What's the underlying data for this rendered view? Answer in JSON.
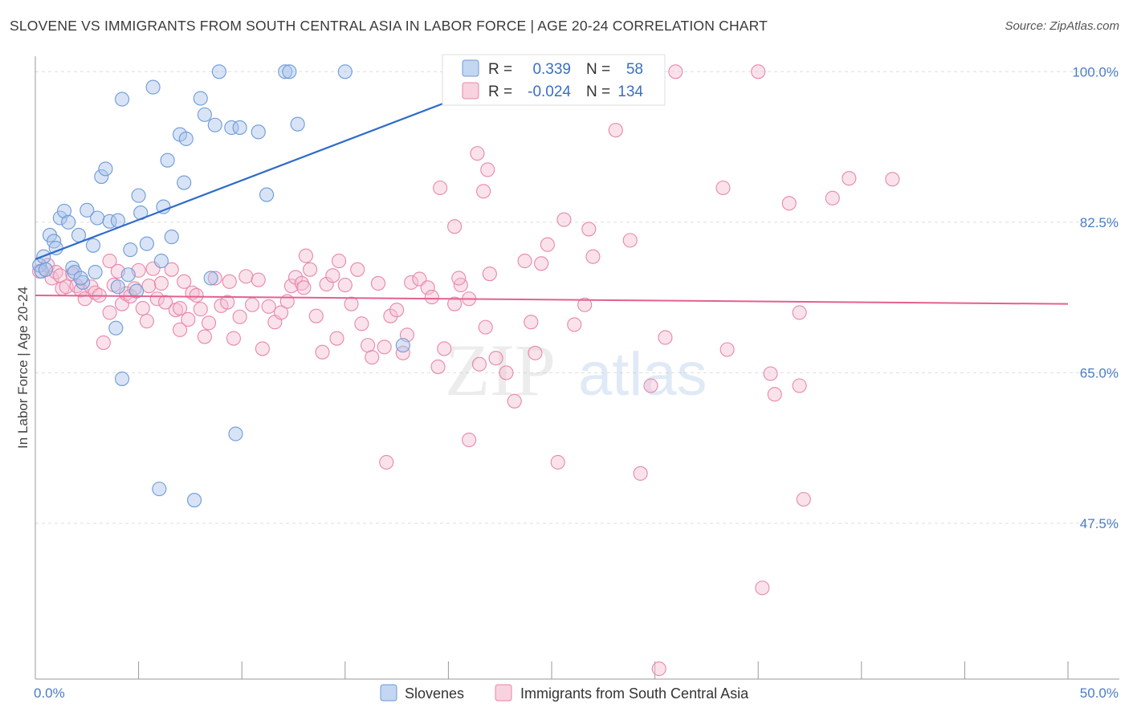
{
  "header": {
    "title": "SLOVENE VS IMMIGRANTS FROM SOUTH CENTRAL ASIA IN LABOR FORCE | AGE 20-24 CORRELATION CHART",
    "source": "Source: ZipAtlas.com"
  },
  "watermark": {
    "zip": "ZIP",
    "atlas": "atlas"
  },
  "colors": {
    "blue_fill": "#a9c4ec",
    "blue_stroke": "#6d9ad8",
    "blue_line": "#2f6bc9",
    "pink_fill": "#f5bfd2",
    "pink_stroke": "#e887a9",
    "pink_line": "#e4608f",
    "tick_label": "#4a7cc7",
    "grid": "#dddddd"
  },
  "legend": {
    "rows": [
      {
        "r_label": "R =",
        "r_value": "0.339",
        "n_label": "N =",
        "n_value": "58"
      },
      {
        "r_label": "R =",
        "r_value": "-0.024",
        "n_label": "N =",
        "n_value": "134"
      }
    ]
  },
  "chart_data": {
    "type": "scatter",
    "title": "SLOVENE VS IMMIGRANTS FROM SOUTH CENTRAL ASIA IN LABOR FORCE | AGE 20-24 CORRELATION CHART",
    "xlabel": "",
    "ylabel": "In Labor Force | Age 20-24",
    "xlim": [
      0,
      50
    ],
    "ylim": [
      29.4,
      101.8
    ],
    "x_tick_labels": [
      {
        "value": 0,
        "label": "0.0%"
      },
      {
        "value": 50,
        "label": "50.0%"
      }
    ],
    "y_tick_labels": [
      {
        "value": 100,
        "label": "100.0%"
      },
      {
        "value": 82.5,
        "label": "82.5%"
      },
      {
        "value": 65,
        "label": "65.0%"
      },
      {
        "value": 47.5,
        "label": "47.5%"
      }
    ],
    "grid": true,
    "legend_position": "top-center",
    "series": [
      {
        "name": "Slovenes",
        "r": 0.339,
        "n": 58,
        "trend": {
          "x": [
            0,
            24
          ],
          "y": [
            78.2,
            100.2
          ]
        },
        "points": [
          [
            0.2,
            77.5
          ],
          [
            0.3,
            76.8
          ],
          [
            0.4,
            78.5
          ],
          [
            0.5,
            77.0
          ],
          [
            0.7,
            81.0
          ],
          [
            0.9,
            80.3
          ],
          [
            1.0,
            79.5
          ],
          [
            1.2,
            83.0
          ],
          [
            1.4,
            83.8
          ],
          [
            1.6,
            82.5
          ],
          [
            1.8,
            77.2
          ],
          [
            1.9,
            76.7
          ],
          [
            2.1,
            81.0
          ],
          [
            2.3,
            75.5
          ],
          [
            2.5,
            83.9
          ],
          [
            2.8,
            79.8
          ],
          [
            3.0,
            83.0
          ],
          [
            3.2,
            87.8
          ],
          [
            3.4,
            88.7
          ],
          [
            3.6,
            82.6
          ],
          [
            4.0,
            82.7
          ],
          [
            4.2,
            96.8
          ],
          [
            4.5,
            76.4
          ],
          [
            4.6,
            79.3
          ],
          [
            4.9,
            74.5
          ],
          [
            5.0,
            85.6
          ],
          [
            5.1,
            83.6
          ],
          [
            5.4,
            80.0
          ],
          [
            5.7,
            98.2
          ],
          [
            6.1,
            78.0
          ],
          [
            6.2,
            84.3
          ],
          [
            6.4,
            89.7
          ],
          [
            6.6,
            80.8
          ],
          [
            7.0,
            92.7
          ],
          [
            7.2,
            87.1
          ],
          [
            7.3,
            92.2
          ],
          [
            8.0,
            96.9
          ],
          [
            8.2,
            95.0
          ],
          [
            8.5,
            76.0
          ],
          [
            8.7,
            93.8
          ],
          [
            8.9,
            100.0
          ],
          [
            9.5,
            93.5
          ],
          [
            9.9,
            93.5
          ],
          [
            10.8,
            93.0
          ],
          [
            11.2,
            85.7
          ],
          [
            12.1,
            100.0
          ],
          [
            12.3,
            100.0
          ],
          [
            12.7,
            93.9
          ],
          [
            15.0,
            100.0
          ],
          [
            17.8,
            68.2
          ],
          [
            3.9,
            70.2
          ],
          [
            4.2,
            64.3
          ],
          [
            6.0,
            51.5
          ],
          [
            7.7,
            50.2
          ],
          [
            9.7,
            57.9
          ],
          [
            4.0,
            75.0
          ],
          [
            2.9,
            76.7
          ],
          [
            2.2,
            76.0
          ]
        ]
      },
      {
        "name": "Immigrants from South Central Asia",
        "r": -0.024,
        "n": 134,
        "trend": {
          "x": [
            0,
            50
          ],
          "y": [
            74.0,
            73.0
          ]
        },
        "points": [
          [
            0.2,
            76.8
          ],
          [
            0.6,
            77.5
          ],
          [
            0.8,
            76.0
          ],
          [
            1.0,
            76.7
          ],
          [
            1.2,
            76.3
          ],
          [
            1.3,
            74.8
          ],
          [
            1.5,
            75.0
          ],
          [
            1.8,
            76.5
          ],
          [
            2.0,
            75.1
          ],
          [
            2.2,
            74.6
          ],
          [
            2.4,
            73.6
          ],
          [
            2.7,
            75.0
          ],
          [
            2.9,
            74.3
          ],
          [
            3.1,
            74.0
          ],
          [
            3.3,
            68.5
          ],
          [
            3.6,
            78.0
          ],
          [
            3.8,
            75.2
          ],
          [
            4.0,
            76.8
          ],
          [
            4.2,
            73.0
          ],
          [
            4.4,
            74.2
          ],
          [
            4.6,
            73.9
          ],
          [
            4.8,
            74.8
          ],
          [
            5.0,
            76.9
          ],
          [
            5.2,
            72.5
          ],
          [
            5.5,
            75.1
          ],
          [
            5.7,
            77.1
          ],
          [
            5.9,
            73.6
          ],
          [
            6.1,
            75.4
          ],
          [
            6.3,
            73.2
          ],
          [
            6.6,
            77.0
          ],
          [
            6.8,
            72.3
          ],
          [
            7.0,
            72.5
          ],
          [
            7.2,
            75.6
          ],
          [
            7.4,
            71.2
          ],
          [
            7.6,
            74.3
          ],
          [
            7.8,
            74.0
          ],
          [
            8.0,
            72.4
          ],
          [
            8.2,
            69.2
          ],
          [
            8.4,
            70.8
          ],
          [
            8.7,
            76.0
          ],
          [
            9.0,
            72.8
          ],
          [
            9.3,
            73.2
          ],
          [
            9.6,
            69.0
          ],
          [
            9.9,
            71.5
          ],
          [
            10.2,
            76.2
          ],
          [
            10.5,
            72.9
          ],
          [
            10.8,
            75.8
          ],
          [
            11.0,
            67.8
          ],
          [
            11.3,
            72.7
          ],
          [
            11.6,
            70.9
          ],
          [
            11.9,
            72.0
          ],
          [
            12.2,
            73.3
          ],
          [
            12.4,
            75.1
          ],
          [
            12.6,
            76.1
          ],
          [
            12.9,
            75.4
          ],
          [
            13.1,
            78.6
          ],
          [
            13.3,
            77.0
          ],
          [
            13.6,
            71.6
          ],
          [
            13.9,
            67.4
          ],
          [
            14.1,
            75.3
          ],
          [
            14.4,
            76.3
          ],
          [
            14.7,
            78.0
          ],
          [
            15.0,
            75.2
          ],
          [
            15.3,
            73.0
          ],
          [
            15.6,
            77.0
          ],
          [
            15.8,
            70.7
          ],
          [
            16.1,
            68.2
          ],
          [
            16.3,
            66.8
          ],
          [
            16.6,
            75.4
          ],
          [
            16.9,
            68.0
          ],
          [
            17.2,
            71.6
          ],
          [
            17.5,
            72.3
          ],
          [
            17.8,
            67.3
          ],
          [
            18.2,
            75.5
          ],
          [
            18.6,
            75.9
          ],
          [
            19.0,
            74.9
          ],
          [
            19.2,
            73.8
          ],
          [
            19.5,
            65.7
          ],
          [
            19.8,
            67.8
          ],
          [
            20.3,
            73.0
          ],
          [
            20.6,
            75.2
          ],
          [
            21.0,
            73.6
          ],
          [
            21.5,
            66.0
          ],
          [
            21.8,
            70.3
          ],
          [
            22.3,
            66.7
          ],
          [
            22.8,
            65.0
          ],
          [
            23.2,
            61.7
          ],
          [
            24.0,
            70.9
          ],
          [
            24.5,
            77.7
          ],
          [
            24.8,
            79.9
          ],
          [
            25.6,
            82.8
          ],
          [
            26.1,
            70.6
          ],
          [
            26.6,
            72.9
          ],
          [
            26.8,
            81.7
          ],
          [
            27.0,
            78.5
          ],
          [
            28.1,
            93.2
          ],
          [
            28.8,
            80.4
          ],
          [
            29.3,
            53.3
          ],
          [
            29.8,
            63.5
          ],
          [
            30.5,
            69.1
          ],
          [
            31.0,
            100.0
          ],
          [
            20.3,
            82.0
          ],
          [
            19.6,
            86.5
          ],
          [
            21.4,
            90.5
          ],
          [
            21.9,
            88.6
          ],
          [
            21.7,
            86.1
          ],
          [
            21.0,
            57.2
          ],
          [
            17.0,
            54.6
          ],
          [
            25.3,
            54.6
          ],
          [
            30.2,
            30.6
          ],
          [
            33.5,
            67.7
          ],
          [
            35.0,
            100.0
          ],
          [
            35.2,
            40.0
          ],
          [
            35.6,
            64.9
          ],
          [
            35.8,
            62.5
          ],
          [
            36.5,
            84.7
          ],
          [
            37.0,
            63.5
          ],
          [
            37.2,
            50.3
          ],
          [
            38.6,
            85.3
          ],
          [
            39.4,
            87.6
          ],
          [
            33.3,
            86.5
          ],
          [
            41.5,
            87.5
          ],
          [
            37.0,
            72.0
          ],
          [
            23.7,
            78.0
          ],
          [
            24.2,
            67.3
          ],
          [
            22.0,
            76.5
          ],
          [
            20.5,
            76.0
          ],
          [
            18.0,
            69.4
          ],
          [
            14.6,
            69.0
          ],
          [
            13.0,
            74.9
          ],
          [
            9.4,
            75.6
          ],
          [
            7.0,
            70.0
          ],
          [
            3.6,
            72.0
          ],
          [
            5.4,
            71.0
          ]
        ]
      }
    ]
  },
  "bottom_legend": [
    {
      "label": "Slovenes"
    },
    {
      "label": "Immigrants from South Central Asia"
    }
  ]
}
